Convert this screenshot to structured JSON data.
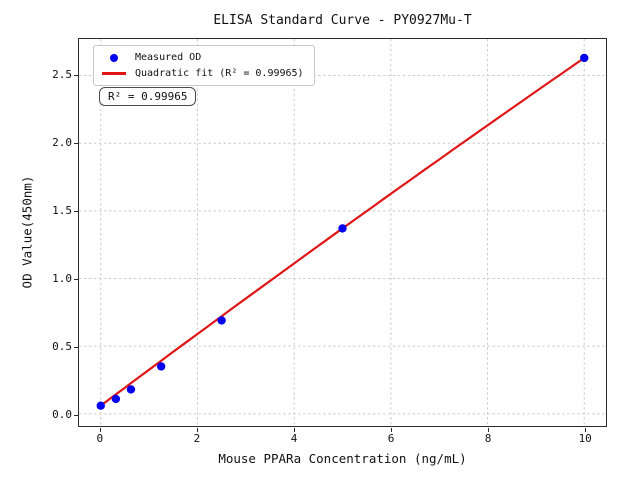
{
  "title": "ELISA Standard Curve - PY0927Mu-T",
  "legend": {
    "items": [
      {
        "label": "Measured OD",
        "marker": "dot",
        "color": "#0000ee"
      },
      {
        "label": "Quadratic fit (R² = 0.99965)",
        "marker": "line",
        "color": "#e01616"
      }
    ]
  },
  "annotation": {
    "text": "R² = 0.99965"
  },
  "chart_data": {
    "type": "scatter",
    "title": "ELISA Standard Curve - PY0927Mu-T",
    "xlabel": "Mouse PPARa Concentration (ng/mL)",
    "ylabel": "OD Value(450nm)",
    "x": [
      0,
      0.313,
      0.625,
      1.25,
      2.5,
      5,
      10
    ],
    "series": [
      {
        "name": "Measured OD",
        "values": [
          0.06,
          0.11,
          0.18,
          0.35,
          0.69,
          1.37,
          2.63
        ]
      }
    ],
    "fit": {
      "name": "Quadratic fit",
      "type": "quadratic",
      "r_squared": 0.99965
    },
    "xlim": [
      -0.45,
      10.45
    ],
    "ylim": [
      -0.09,
      2.77
    ],
    "xticks": [
      0,
      2,
      4,
      6,
      8,
      10
    ],
    "xticklabels": [
      "0",
      "2",
      "4",
      "6",
      "8",
      "10"
    ],
    "yticks": [
      0.0,
      0.5,
      1.0,
      1.5,
      2.0,
      2.5
    ],
    "yticklabels": [
      "0.0",
      "0.5",
      "1.0",
      "1.5",
      "2.0",
      "2.5"
    ],
    "grid": true,
    "grid_style": "dashed",
    "legend_position": "upper-left",
    "colors": {
      "points": "#0000ee",
      "line": "#e01616",
      "grid": "#cccccc",
      "spine": "#2a2a2a",
      "background": "#ffffff"
    }
  }
}
